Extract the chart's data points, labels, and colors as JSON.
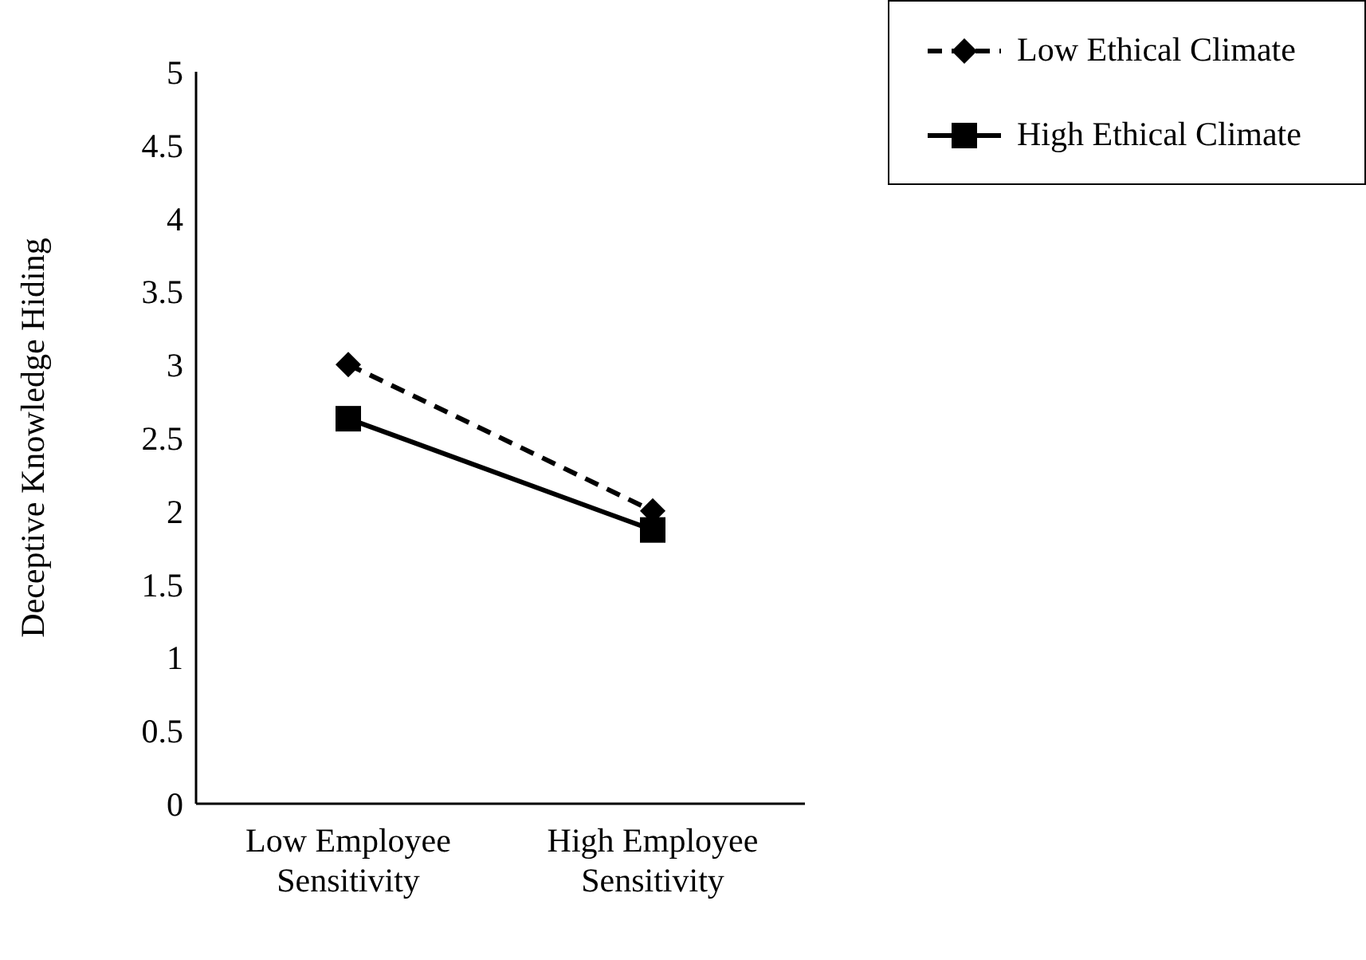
{
  "chart_data": {
    "type": "line",
    "ylabel": "Deceptive Knowledge Hiding",
    "categories": [
      "Low Employee Sensitivity",
      "High Employee Sensitivity"
    ],
    "series": [
      {
        "name": "Low Ethical Climate",
        "color": "#000000",
        "values": [
          3.0,
          2.0
        ],
        "marker": "diamond",
        "line_style": "dashed"
      },
      {
        "name": "High Ethical Climate",
        "color": "#000000",
        "values": [
          2.63,
          1.87
        ],
        "marker": "square",
        "line_style": "solid"
      }
    ],
    "ylim": [
      0,
      5
    ],
    "yticks": [
      0,
      0.5,
      1,
      1.5,
      2,
      2.5,
      3,
      3.5,
      4,
      4.5,
      5
    ],
    "grid": false,
    "legend": "top right"
  }
}
